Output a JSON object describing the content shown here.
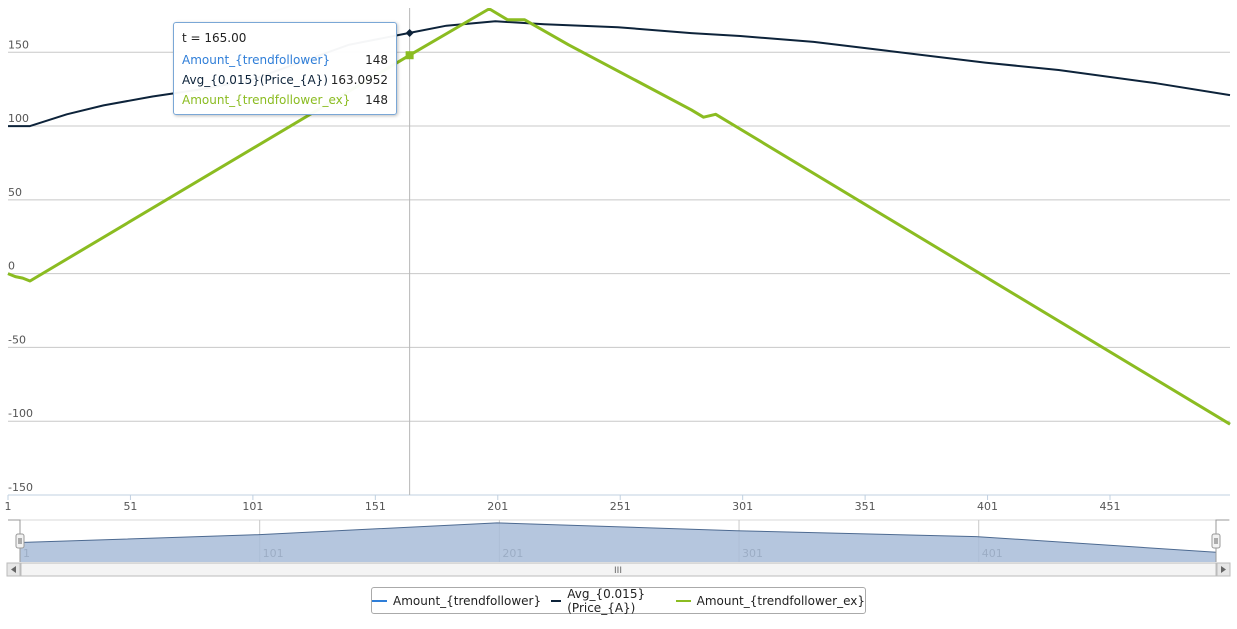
{
  "colors": {
    "trendfollower": "#2f7ed8",
    "avg_price": "#0d233a",
    "trendfollower_ex": "#8bbc21",
    "grid": "#c8c8c8",
    "navigator_fill": "#a8bcd8",
    "navigator_line": "#4d6a91"
  },
  "chart_data": {
    "type": "line",
    "xlabel": "",
    "ylabel": "",
    "xlim": [
      1,
      500
    ],
    "ylim": [
      -150,
      180
    ],
    "x_ticks": [
      1,
      51,
      101,
      151,
      201,
      251,
      301,
      351,
      401,
      451
    ],
    "y_ticks": [
      150,
      100,
      50,
      0,
      -50,
      -100,
      -150
    ],
    "grid": true,
    "legend_position": "bottom-center",
    "series": [
      {
        "name": "Amount_{trendfollower}",
        "color": "#2f7ed8",
        "x": [
          1,
          4,
          7,
          10,
          165,
          197,
          198,
          205,
          212,
          230,
          280,
          285,
          290,
          500
        ],
        "y": [
          0,
          -2,
          -3,
          -5,
          148,
          179,
          179,
          172,
          172,
          155,
          111,
          106,
          108,
          -102
        ]
      },
      {
        "name": "Avg_{0.015}(Price_{A})",
        "color": "#0d233a",
        "x": [
          1,
          10,
          25,
          40,
          60,
          80,
          100,
          120,
          140,
          165,
          180,
          200,
          220,
          250,
          280,
          300,
          330,
          360,
          400,
          430,
          470,
          500
        ],
        "y": [
          100,
          100,
          108,
          114,
          120,
          125,
          131,
          143,
          155,
          163.0952,
          168,
          171,
          169,
          167,
          163,
          161,
          157,
          151,
          143,
          138,
          129,
          121
        ]
      },
      {
        "name": "Amount_{trendfollower_ex}",
        "color": "#8bbc21",
        "x": [
          1,
          4,
          7,
          10,
          165,
          197,
          198,
          205,
          212,
          230,
          280,
          285,
          290,
          500
        ],
        "y": [
          0,
          -2,
          -3,
          -5,
          148,
          179,
          179,
          172,
          172,
          155,
          111,
          106,
          108,
          -102
        ]
      }
    ],
    "crosshair": {
      "x": 165
    },
    "tooltip": {
      "title": "t = 165.00",
      "rows": [
        {
          "name": "Amount_{trendfollower}",
          "value": "148",
          "color": "#2f7ed8"
        },
        {
          "name": "Avg_{0.015}(Price_{A})",
          "value": "163.0952",
          "color": "#0d233a"
        },
        {
          "name": "Amount_{trendfollower_ex}",
          "value": "148",
          "color": "#8bbc21"
        }
      ]
    },
    "navigator": {
      "x_ticks": [
        1,
        101,
        201,
        301,
        401
      ],
      "x": [
        1,
        100,
        200,
        300,
        400,
        500
      ],
      "y": [
        0,
        0.4,
        1,
        0.6,
        0.3,
        -0.5
      ],
      "scrollbar_grip": "III"
    }
  },
  "legend": {
    "items": [
      {
        "label": "Amount_{trendfollower}",
        "color": "#2f7ed8"
      },
      {
        "label": "Avg_{0.015}(Price_{A})",
        "color": "#0d233a"
      },
      {
        "label": "Amount_{trendfollower_ex}",
        "color": "#8bbc21"
      }
    ]
  }
}
